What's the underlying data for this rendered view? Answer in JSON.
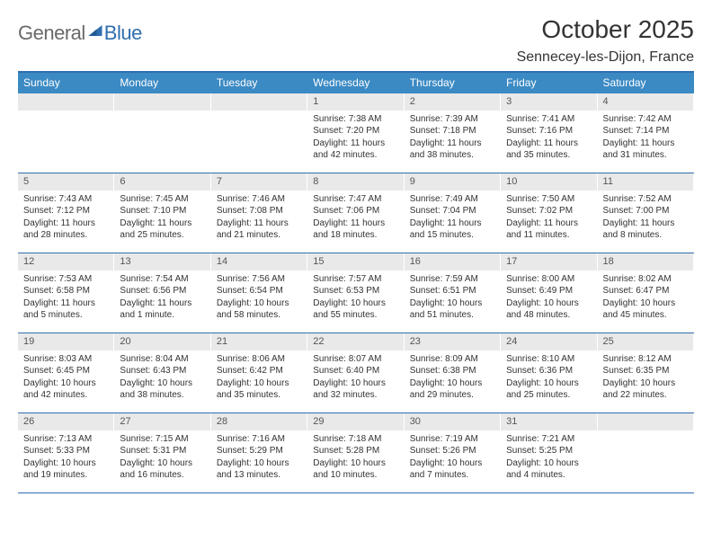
{
  "logo": {
    "general": "General",
    "blue": "Blue",
    "mark_color": "#2f6fae"
  },
  "header": {
    "month_title": "October 2025",
    "location": "Sennecey-les-Dijon, France"
  },
  "colors": {
    "header_bar": "#3b8ac4",
    "rule": "#2f6fae",
    "daynum_bg": "#e9e9e9",
    "text": "#333333",
    "logo_gray": "#6a6a6a",
    "logo_blue": "#2f6fae",
    "background": "#ffffff"
  },
  "typography": {
    "title_fontsize": 28,
    "location_fontsize": 16,
    "weekday_fontsize": 12,
    "daynum_fontsize": 11,
    "body_fontsize": 10
  },
  "weekdays": [
    "Sunday",
    "Monday",
    "Tuesday",
    "Wednesday",
    "Thursday",
    "Friday",
    "Saturday"
  ],
  "weeks": [
    [
      {
        "num": "",
        "lines": []
      },
      {
        "num": "",
        "lines": []
      },
      {
        "num": "",
        "lines": []
      },
      {
        "num": "1",
        "lines": [
          "Sunrise: 7:38 AM",
          "Sunset: 7:20 PM",
          "Daylight: 11 hours and 42 minutes."
        ]
      },
      {
        "num": "2",
        "lines": [
          "Sunrise: 7:39 AM",
          "Sunset: 7:18 PM",
          "Daylight: 11 hours and 38 minutes."
        ]
      },
      {
        "num": "3",
        "lines": [
          "Sunrise: 7:41 AM",
          "Sunset: 7:16 PM",
          "Daylight: 11 hours and 35 minutes."
        ]
      },
      {
        "num": "4",
        "lines": [
          "Sunrise: 7:42 AM",
          "Sunset: 7:14 PM",
          "Daylight: 11 hours and 31 minutes."
        ]
      }
    ],
    [
      {
        "num": "5",
        "lines": [
          "Sunrise: 7:43 AM",
          "Sunset: 7:12 PM",
          "Daylight: 11 hours and 28 minutes."
        ]
      },
      {
        "num": "6",
        "lines": [
          "Sunrise: 7:45 AM",
          "Sunset: 7:10 PM",
          "Daylight: 11 hours and 25 minutes."
        ]
      },
      {
        "num": "7",
        "lines": [
          "Sunrise: 7:46 AM",
          "Sunset: 7:08 PM",
          "Daylight: 11 hours and 21 minutes."
        ]
      },
      {
        "num": "8",
        "lines": [
          "Sunrise: 7:47 AM",
          "Sunset: 7:06 PM",
          "Daylight: 11 hours and 18 minutes."
        ]
      },
      {
        "num": "9",
        "lines": [
          "Sunrise: 7:49 AM",
          "Sunset: 7:04 PM",
          "Daylight: 11 hours and 15 minutes."
        ]
      },
      {
        "num": "10",
        "lines": [
          "Sunrise: 7:50 AM",
          "Sunset: 7:02 PM",
          "Daylight: 11 hours and 11 minutes."
        ]
      },
      {
        "num": "11",
        "lines": [
          "Sunrise: 7:52 AM",
          "Sunset: 7:00 PM",
          "Daylight: 11 hours and 8 minutes."
        ]
      }
    ],
    [
      {
        "num": "12",
        "lines": [
          "Sunrise: 7:53 AM",
          "Sunset: 6:58 PM",
          "Daylight: 11 hours and 5 minutes."
        ]
      },
      {
        "num": "13",
        "lines": [
          "Sunrise: 7:54 AM",
          "Sunset: 6:56 PM",
          "Daylight: 11 hours and 1 minute."
        ]
      },
      {
        "num": "14",
        "lines": [
          "Sunrise: 7:56 AM",
          "Sunset: 6:54 PM",
          "Daylight: 10 hours and 58 minutes."
        ]
      },
      {
        "num": "15",
        "lines": [
          "Sunrise: 7:57 AM",
          "Sunset: 6:53 PM",
          "Daylight: 10 hours and 55 minutes."
        ]
      },
      {
        "num": "16",
        "lines": [
          "Sunrise: 7:59 AM",
          "Sunset: 6:51 PM",
          "Daylight: 10 hours and 51 minutes."
        ]
      },
      {
        "num": "17",
        "lines": [
          "Sunrise: 8:00 AM",
          "Sunset: 6:49 PM",
          "Daylight: 10 hours and 48 minutes."
        ]
      },
      {
        "num": "18",
        "lines": [
          "Sunrise: 8:02 AM",
          "Sunset: 6:47 PM",
          "Daylight: 10 hours and 45 minutes."
        ]
      }
    ],
    [
      {
        "num": "19",
        "lines": [
          "Sunrise: 8:03 AM",
          "Sunset: 6:45 PM",
          "Daylight: 10 hours and 42 minutes."
        ]
      },
      {
        "num": "20",
        "lines": [
          "Sunrise: 8:04 AM",
          "Sunset: 6:43 PM",
          "Daylight: 10 hours and 38 minutes."
        ]
      },
      {
        "num": "21",
        "lines": [
          "Sunrise: 8:06 AM",
          "Sunset: 6:42 PM",
          "Daylight: 10 hours and 35 minutes."
        ]
      },
      {
        "num": "22",
        "lines": [
          "Sunrise: 8:07 AM",
          "Sunset: 6:40 PM",
          "Daylight: 10 hours and 32 minutes."
        ]
      },
      {
        "num": "23",
        "lines": [
          "Sunrise: 8:09 AM",
          "Sunset: 6:38 PM",
          "Daylight: 10 hours and 29 minutes."
        ]
      },
      {
        "num": "24",
        "lines": [
          "Sunrise: 8:10 AM",
          "Sunset: 6:36 PM",
          "Daylight: 10 hours and 25 minutes."
        ]
      },
      {
        "num": "25",
        "lines": [
          "Sunrise: 8:12 AM",
          "Sunset: 6:35 PM",
          "Daylight: 10 hours and 22 minutes."
        ]
      }
    ],
    [
      {
        "num": "26",
        "lines": [
          "Sunrise: 7:13 AM",
          "Sunset: 5:33 PM",
          "Daylight: 10 hours and 19 minutes."
        ]
      },
      {
        "num": "27",
        "lines": [
          "Sunrise: 7:15 AM",
          "Sunset: 5:31 PM",
          "Daylight: 10 hours and 16 minutes."
        ]
      },
      {
        "num": "28",
        "lines": [
          "Sunrise: 7:16 AM",
          "Sunset: 5:29 PM",
          "Daylight: 10 hours and 13 minutes."
        ]
      },
      {
        "num": "29",
        "lines": [
          "Sunrise: 7:18 AM",
          "Sunset: 5:28 PM",
          "Daylight: 10 hours and 10 minutes."
        ]
      },
      {
        "num": "30",
        "lines": [
          "Sunrise: 7:19 AM",
          "Sunset: 5:26 PM",
          "Daylight: 10 hours and 7 minutes."
        ]
      },
      {
        "num": "31",
        "lines": [
          "Sunrise: 7:21 AM",
          "Sunset: 5:25 PM",
          "Daylight: 10 hours and 4 minutes."
        ]
      },
      {
        "num": "",
        "lines": []
      }
    ]
  ]
}
